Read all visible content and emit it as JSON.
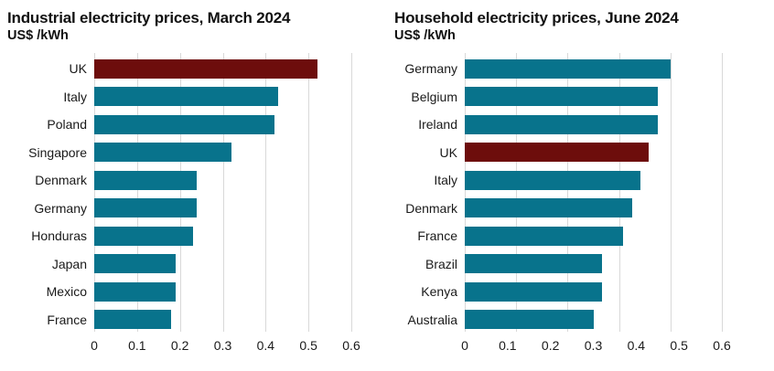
{
  "colors": {
    "bar": "#08738c",
    "highlight": "#6d0d0c",
    "gridline": "#d9d9d9",
    "text": "#1a1a1a"
  },
  "chart_data": [
    {
      "type": "bar",
      "orientation": "horizontal",
      "title": "Industrial electricity prices, March 2024",
      "subtitle": "US$ /kWh",
      "xlabel": "",
      "ylabel": "",
      "xlim": [
        0,
        0.6
      ],
      "categories": [
        "UK",
        "Italy",
        "Poland",
        "Singapore",
        "Denmark",
        "Germany",
        "Honduras",
        "Japan",
        "Mexico",
        "France"
      ],
      "values": [
        0.52,
        0.43,
        0.42,
        0.32,
        0.24,
        0.24,
        0.23,
        0.19,
        0.19,
        0.18
      ],
      "highlight_category": "UK",
      "x_ticks": [
        {
          "value": 0,
          "label": "0"
        },
        {
          "value": 0.1,
          "label": "0.1"
        },
        {
          "value": 0.2,
          "label": "0.2"
        },
        {
          "value": 0.3,
          "label": "0.3"
        },
        {
          "value": 0.4,
          "label": "0.4"
        },
        {
          "value": 0.5,
          "label": "0.5"
        },
        {
          "value": 0.6,
          "label": "0.6"
        }
      ],
      "gridlines": [
        0,
        0.1,
        0.2,
        0.3,
        0.4,
        0.5,
        0.6
      ],
      "grid": "vertical-only",
      "legend": "none"
    },
    {
      "type": "bar",
      "orientation": "horizontal",
      "title": "Household electricity prices, June 2024",
      "subtitle": "US$ /kWh",
      "xlabel": "",
      "ylabel": "",
      "xlim": [
        0,
        0.6
      ],
      "categories": [
        "Germany",
        "Belgium",
        "Ireland",
        "UK",
        "Italy",
        "Denmark",
        "France",
        "Brazil",
        "Kenya",
        "Australia"
      ],
      "values": [
        0.48,
        0.45,
        0.45,
        0.43,
        0.41,
        0.39,
        0.37,
        0.32,
        0.32,
        0.3
      ],
      "highlight_category": "UK",
      "x_ticks": [
        {
          "value": 0,
          "label": "0"
        },
        {
          "value": 0.1,
          "label": "0.1"
        },
        {
          "value": 0.2,
          "label": "0.2"
        },
        {
          "value": 0.3,
          "label": "0.3"
        },
        {
          "value": 0.4,
          "label": "0.4"
        },
        {
          "value": 0.5,
          "label": "0.5"
        },
        {
          "value": 0.6,
          "label": "0.6"
        }
      ],
      "gridlines": [
        0,
        0.12,
        0.24,
        0.36,
        0.48,
        0.6
      ],
      "grid": "vertical-only",
      "legend": "none"
    }
  ]
}
